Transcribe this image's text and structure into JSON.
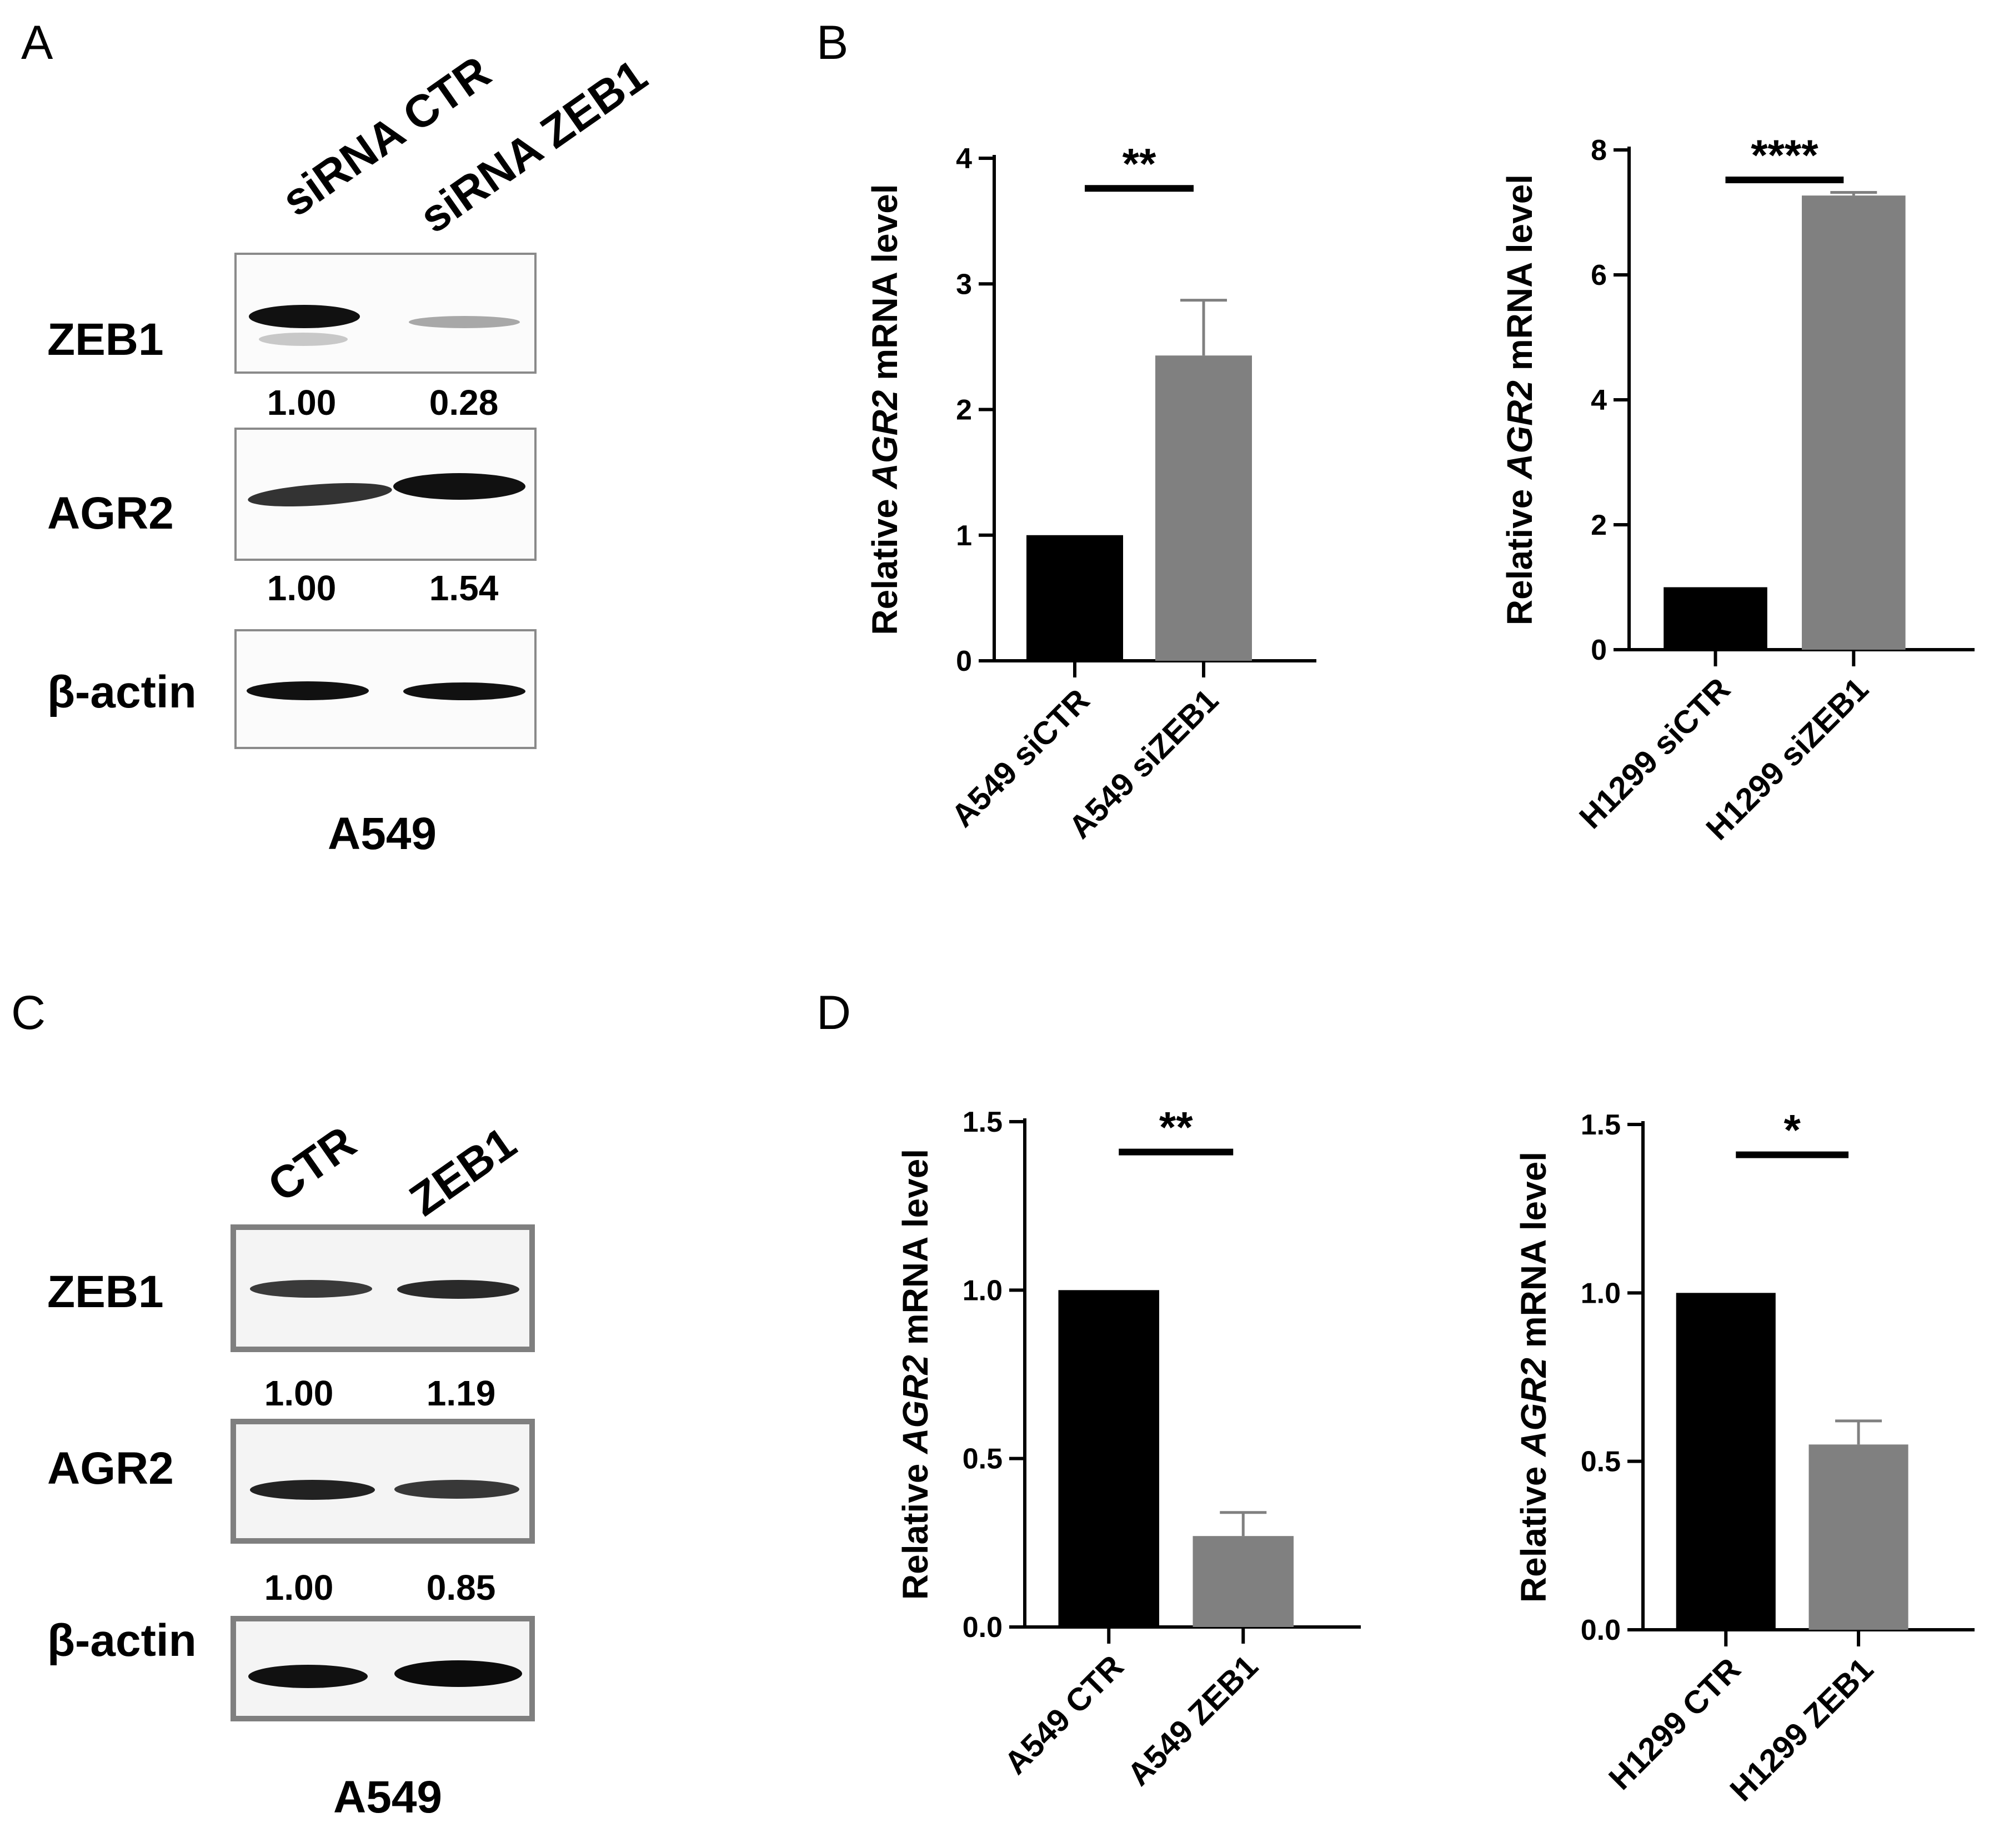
{
  "panels": {
    "a": {
      "letter": "A",
      "lane_headers": [
        "siRNA CTR",
        "siRNA ZEB1"
      ],
      "rows": [
        {
          "label": "ZEB1",
          "quant": [
            "1.00",
            "0.28"
          ]
        },
        {
          "label": "AGR2",
          "quant": [
            "1.00",
            "1.54"
          ]
        },
        {
          "label": "β-actin"
        }
      ],
      "cell_line": "A549"
    },
    "b": {
      "letter": "B"
    },
    "c": {
      "letter": "C",
      "lane_headers": [
        "CTR",
        "ZEB1"
      ],
      "rows": [
        {
          "label": "ZEB1",
          "quant": [
            "1.00",
            "1.19"
          ]
        },
        {
          "label": "AGR2",
          "quant": [
            "1.00",
            "0.85"
          ]
        },
        {
          "label": "β-actin"
        }
      ],
      "cell_line": "A549"
    },
    "d": {
      "letter": "D"
    }
  },
  "colors": {
    "control_bar": "#000000",
    "treated_bar": "#808080",
    "axis": "#000000"
  },
  "chart_data": [
    {
      "id": "b-left",
      "type": "bar",
      "title": "",
      "ylabel_prefix": "Relative ",
      "ylabel_gene": "AGR2",
      "ylabel_suffix": " mRNA level",
      "categories": [
        "A549 siCTR",
        "A549 siZEB1"
      ],
      "values": [
        1.0,
        2.43
      ],
      "errors": [
        0,
        0.44
      ],
      "ylim": [
        0,
        4
      ],
      "yticks": [
        0,
        1,
        2,
        3,
        4
      ],
      "ytick_labels": [
        "0",
        "1",
        "2",
        "3",
        "4"
      ],
      "significance": "**",
      "grid": false
    },
    {
      "id": "b-right",
      "type": "bar",
      "title": "",
      "ylabel_prefix": "Relative ",
      "ylabel_gene": "AGR2",
      "ylabel_suffix": " mRNA level",
      "categories": [
        "H1299 siCTR",
        "H1299 siZEB1"
      ],
      "values": [
        1.0,
        7.27
      ],
      "errors": [
        0,
        0.05
      ],
      "ylim": [
        0,
        8
      ],
      "yticks": [
        0,
        2,
        4,
        6,
        8
      ],
      "ytick_labels": [
        "0",
        "2",
        "4",
        "6",
        "8"
      ],
      "significance": "****",
      "grid": false
    },
    {
      "id": "d-left",
      "type": "bar",
      "title": "",
      "ylabel_prefix": "Relative ",
      "ylabel_gene": "AGR2",
      "ylabel_suffix": " mRNA level",
      "categories": [
        "A549 CTR",
        "A549 ZEB1"
      ],
      "values": [
        1.0,
        0.27
      ],
      "errors": [
        0,
        0.07
      ],
      "ylim": [
        0,
        1.5
      ],
      "yticks": [
        0,
        0.5,
        1.0,
        1.5
      ],
      "ytick_labels": [
        "0.0",
        "0.5",
        "1.0",
        "1.5"
      ],
      "significance": "**",
      "grid": false
    },
    {
      "id": "d-right",
      "type": "bar",
      "title": "",
      "ylabel_prefix": "Relative ",
      "ylabel_gene": "AGR2",
      "ylabel_suffix": " mRNA level",
      "categories": [
        "H1299 CTR",
        "H1299 ZEB1"
      ],
      "values": [
        1.0,
        0.55
      ],
      "errors": [
        0,
        0.07
      ],
      "ylim": [
        0,
        1.5
      ],
      "yticks": [
        0,
        0.5,
        1.0,
        1.5
      ],
      "ytick_labels": [
        "0.0",
        "0.5",
        "1.0",
        "1.5"
      ],
      "significance": "*",
      "grid": false
    }
  ]
}
